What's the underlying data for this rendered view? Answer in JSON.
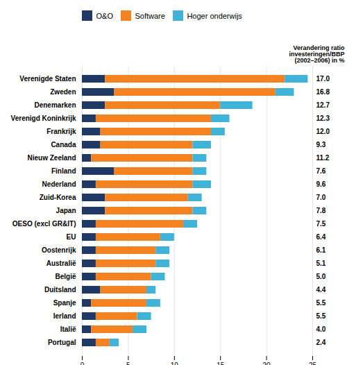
{
  "chart_data": {
    "type": "bar",
    "orientation": "horizontal",
    "stacked": true,
    "categories": [
      "Verenigde Staten",
      "Zweden",
      "Denemarken",
      "Verenigd Koninkrijk",
      "Frankrijk",
      "Canada",
      "Nieuw Zeeland",
      "Finland",
      "Nederland",
      "Zuid-Korea",
      "Japan",
      "OESO (excl GR&IT)",
      "EU",
      "Oostenrijk",
      "Australië",
      "België",
      "Duitsland",
      "Spanje",
      "Ierland",
      "Italië",
      "Portugal"
    ],
    "series": [
      {
        "name": "O&O",
        "color": "#1f3864",
        "values": [
          2.5,
          3.5,
          2.5,
          1.5,
          2.0,
          2.0,
          1.0,
          3.5,
          1.5,
          2.5,
          2.5,
          1.5,
          1.5,
          1.5,
          1.5,
          1.5,
          2.0,
          1.0,
          1.5,
          1.0,
          1.5
        ]
      },
      {
        "name": "Software",
        "color": "#f58220",
        "values": [
          19.5,
          17.5,
          12.5,
          12.5,
          12.0,
          10.0,
          11.0,
          8.5,
          10.5,
          9.0,
          9.5,
          9.5,
          7.0,
          6.5,
          6.5,
          6.0,
          5.0,
          6.0,
          4.5,
          4.5,
          1.5
        ]
      },
      {
        "name": "Hoger onderwijs",
        "color": "#40b4d8",
        "values": [
          2.5,
          2.0,
          3.5,
          2.0,
          1.5,
          2.0,
          1.5,
          1.5,
          2.0,
          1.5,
          1.5,
          1.5,
          1.5,
          1.5,
          1.5,
          1.5,
          1.0,
          1.5,
          1.5,
          1.5,
          1.0
        ]
      }
    ],
    "ratio_values": [
      17.0,
      16.8,
      12.7,
      12.3,
      12.0,
      9.3,
      11.2,
      7.6,
      9.6,
      7.0,
      7.8,
      7.5,
      6.4,
      6.1,
      5.1,
      5.0,
      4.4,
      5.5,
      5.5,
      4.0,
      2.4
    ],
    "annotations": [
      "Verandering ratio",
      "investeringen/BBP",
      "(2002–2006) in %"
    ],
    "xlim": [
      0,
      25
    ],
    "xticks": [
      0,
      5,
      10,
      15,
      20,
      25
    ],
    "grid": true,
    "legend": "upper left"
  }
}
